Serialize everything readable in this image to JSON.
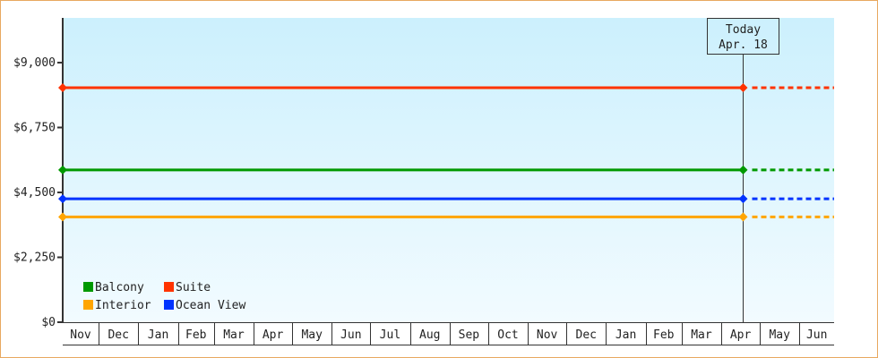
{
  "chart_data": {
    "type": "line",
    "title": "",
    "xlabel": "",
    "ylabel": "",
    "ylim": [
      0,
      10550
    ],
    "y_ticks": [
      0,
      2250,
      4500,
      6750,
      9000
    ],
    "y_tick_labels": [
      "$0",
      "$2,250",
      "$4,500",
      "$6,750",
      "$9,000"
    ],
    "x_tick_labels": [
      "Nov",
      "Dec",
      "Jan",
      "Feb",
      "Mar",
      "Apr",
      "May",
      "Jun",
      "Jul",
      "Aug",
      "Sep",
      "Oct",
      "Nov",
      "Dec",
      "Jan",
      "Feb",
      "Mar",
      "Apr",
      "May",
      "Jun"
    ],
    "today": {
      "line1": "Today",
      "line2": "Apr. 18"
    },
    "legend_position": "bottom-left",
    "grid": false,
    "series": [
      {
        "name": "Balcony",
        "color": "#009900",
        "values": [
          5280,
          5280
        ],
        "projection": "dashed"
      },
      {
        "name": "Suite",
        "color": "#ff3300",
        "values": [
          8130,
          8130
        ],
        "projection": "dashed"
      },
      {
        "name": "Interior",
        "color": "#ffa500",
        "values": [
          3650,
          3650
        ],
        "projection": "dashed"
      },
      {
        "name": "Ocean View",
        "color": "#0033ff",
        "values": [
          4280,
          4280
        ],
        "projection": "dashed"
      }
    ],
    "background_gradient": [
      "#ccf0fd",
      "#f2fbff"
    ]
  }
}
